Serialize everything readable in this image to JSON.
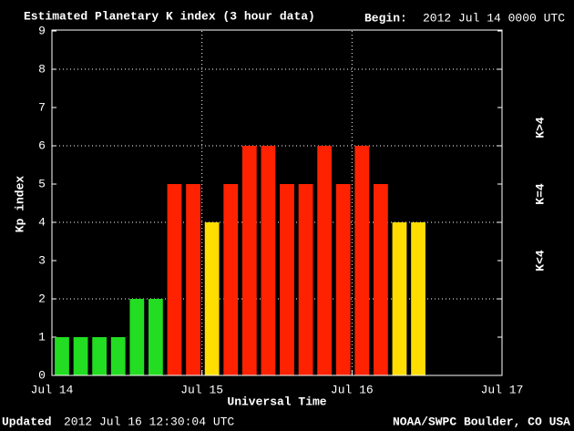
{
  "chart_data": {
    "type": "bar",
    "title": "Estimated Planetary K index (3 hour data)",
    "begin_label": "Begin:",
    "begin": "2012 Jul 14 0000 UTC",
    "updated_label": "Updated",
    "updated": "2012 Jul 16 12:30:04 UTC",
    "credit": "NOAA/SWPC Boulder, CO USA",
    "xlabel": "Universal Time",
    "ylabel": "Kp index",
    "x": [
      0,
      3,
      6,
      9,
      12,
      15,
      18,
      21,
      24,
      27,
      30,
      33,
      36,
      39,
      42,
      45,
      48,
      51,
      54,
      57
    ],
    "values": [
      1,
      1,
      1,
      1,
      2,
      2,
      5,
      5,
      4,
      5,
      6,
      6,
      5,
      5,
      6,
      5,
      6,
      5,
      4,
      4
    ],
    "colors": [
      "#22dd22",
      "#22dd22",
      "#22dd22",
      "#22dd22",
      "#22dd22",
      "#22dd22",
      "#ff2200",
      "#ff2200",
      "#ffdd00",
      "#ff2200",
      "#ff2200",
      "#ff2200",
      "#ff2200",
      "#ff2200",
      "#ff2200",
      "#ff2200",
      "#ff2200",
      "#ff2200",
      "#ffdd00",
      "#ffdd00"
    ],
    "xlim": [
      0,
      72
    ],
    "xticks": [
      {
        "value": 0,
        "label": "Jul 14"
      },
      {
        "value": 24,
        "label": "Jul 15"
      },
      {
        "value": 48,
        "label": "Jul 16"
      },
      {
        "value": 72,
        "label": "Jul 17"
      }
    ],
    "ylim": [
      0,
      9
    ],
    "yticks": [
      0,
      1,
      2,
      3,
      4,
      5,
      6,
      7,
      8,
      9
    ],
    "grid": true,
    "legend": [
      {
        "label": "K>4",
        "color": "#ff2200"
      },
      {
        "label": "K=4",
        "color": "#ffdd00"
      },
      {
        "label": "K<4",
        "color": "#22dd22"
      }
    ]
  }
}
